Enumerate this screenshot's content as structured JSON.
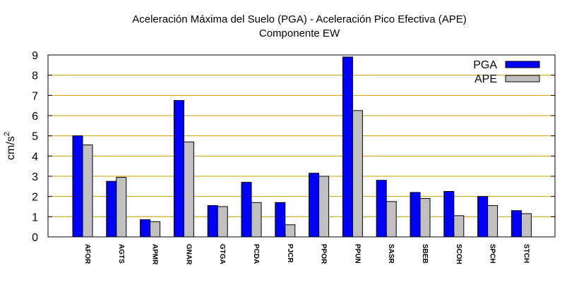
{
  "chart_data": {
    "type": "bar",
    "title": "Aceleración Máxima del Suelo (PGA) -  Aceleración Pico Efectiva (APE)",
    "subtitle": "Componente EW",
    "xlabel": "",
    "ylabel": "cm/s",
    "ylabel_superscript": "2",
    "ylim": [
      0,
      9
    ],
    "yticks": [
      0,
      1,
      2,
      3,
      4,
      5,
      6,
      7,
      8,
      9
    ],
    "grid": "horizontal",
    "grid_color": "#c8a000",
    "legend_position": "top-right",
    "categories": [
      "AFOR",
      "AGTS",
      "APMR",
      "GNAR",
      "GTGA",
      "PCDA",
      "PJCR",
      "PPOR",
      "PPUN",
      "SASR",
      "SBEB",
      "SCOH",
      "SPCH",
      "STCH"
    ],
    "series": [
      {
        "name": "PGA",
        "color": "#0000ff",
        "values": [
          5.0,
          2.75,
          0.85,
          6.75,
          1.55,
          2.7,
          1.7,
          3.15,
          8.9,
          2.8,
          2.2,
          2.25,
          2.0,
          1.3
        ]
      },
      {
        "name": "APE",
        "color": "#c0c0c0",
        "values": [
          4.55,
          2.95,
          0.75,
          4.7,
          1.5,
          1.7,
          0.6,
          3.0,
          6.25,
          1.75,
          1.9,
          1.05,
          1.55,
          1.15
        ]
      }
    ]
  }
}
